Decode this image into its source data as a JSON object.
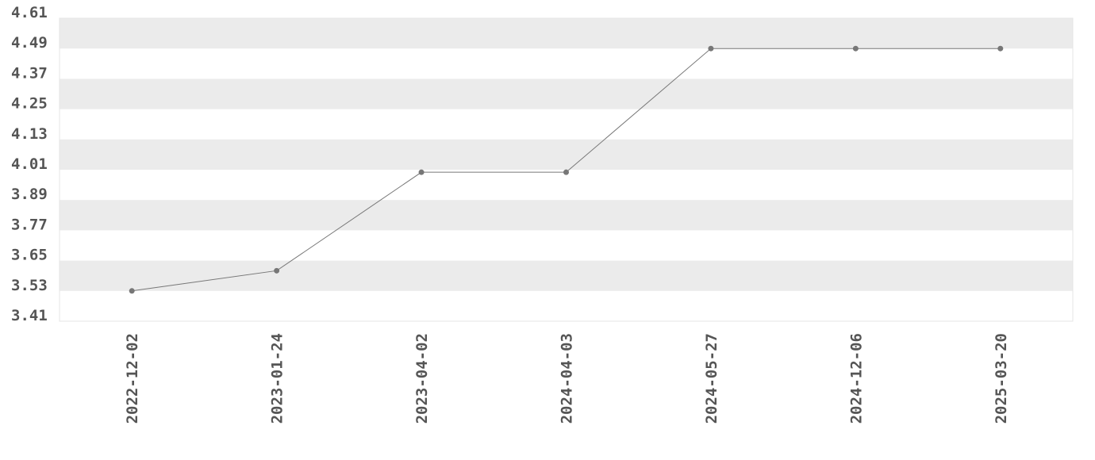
{
  "chart_data": {
    "type": "line",
    "categories": [
      "2022-12-02",
      "2023-01-24",
      "2023-04-02",
      "2024-04-03",
      "2024-05-27",
      "2024-12-06",
      "2025-03-20"
    ],
    "series": [
      {
        "color": "#777777",
        "values": [
          3.53,
          3.61,
          4.0,
          4.0,
          4.49,
          4.49,
          4.49
        ]
      }
    ],
    "ylim": [
      3.41,
      4.61
    ],
    "yticks": [
      3.41,
      3.53,
      3.65,
      3.77,
      3.89,
      4.01,
      4.13,
      4.25,
      4.37,
      4.49,
      4.61
    ],
    "grid": "bands",
    "band_color": "#ebebeb"
  }
}
